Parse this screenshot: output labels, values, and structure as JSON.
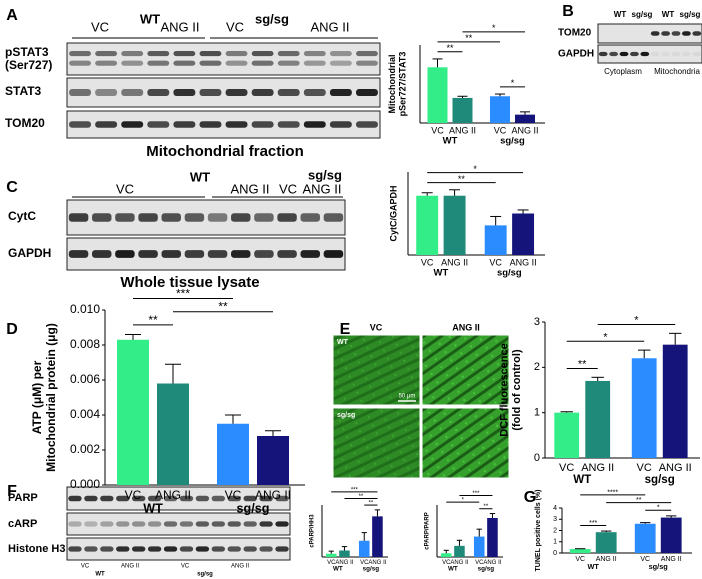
{
  "panel_letters": [
    "A",
    "B",
    "C",
    "D",
    "E",
    "F",
    "G"
  ],
  "blot_A": {
    "header": [
      "VC",
      "WT",
      "ANG II",
      "VC",
      "sg/sg",
      "ANG II"
    ],
    "rows": [
      [
        "pSTAT3",
        "(Ser727)"
      ],
      [
        "STAT3"
      ],
      [
        "TOM20"
      ]
    ],
    "caption": "Mitochondrial fraction"
  },
  "blot_B": {
    "header": [
      "WT",
      "sg/sg",
      "WT",
      "sg/sg"
    ],
    "rows": [
      "TOM20",
      "GAPDH"
    ],
    "footer": [
      "Cytoplasm",
      "Mitochondria"
    ]
  },
  "blot_C": {
    "header": [
      "VC",
      "WT",
      "ANG II",
      "VC",
      "sg/sg",
      "ANG II"
    ],
    "rows": [
      "CytC",
      "GAPDH"
    ],
    "caption": "Whole tissue lysate"
  },
  "images_E": {
    "columns": [
      "VC",
      "ANG II"
    ],
    "rows": [
      "WT",
      "sg/sg"
    ],
    "scale_bar": "50 μm"
  },
  "blot_F": {
    "rows": [
      "PARP",
      "cARP",
      "Histone H3"
    ],
    "lanes": [
      "VC",
      "ANG II",
      "VC",
      "ANG II"
    ],
    "groups": [
      "WT",
      "sg/sg"
    ]
  },
  "chart_data": [
    {
      "type": "bar",
      "ylabel": [
        "Mitochondrial",
        "pSer727/STAT3"
      ],
      "categories": [
        "VC",
        "ANG II",
        "VC",
        "ANG II"
      ],
      "groups": [
        "WT",
        "sg/sg"
      ],
      "values": [
        1.0,
        0.45,
        0.48,
        0.15
      ],
      "errors": [
        0.15,
        0.03,
        0.04,
        0.05
      ],
      "colors": [
        "#33ee88",
        "#1f8a7a",
        "#2a8cff",
        "#14147a"
      ],
      "ylim": [
        0,
        1.4
      ],
      "significance": [
        {
          "between": [
            0,
            1
          ],
          "label": "**"
        },
        {
          "between": [
            0,
            2
          ],
          "label": "**"
        },
        {
          "between": [
            2,
            3
          ],
          "label": "*"
        },
        {
          "between": [
            1,
            3
          ],
          "label": "*"
        }
      ]
    },
    {
      "type": "bar",
      "ylabel": [
        "CytC/GAPDH"
      ],
      "categories": [
        "VC",
        "ANG II",
        "VC",
        "ANG II"
      ],
      "groups": [
        "WT",
        "sg/sg"
      ],
      "values": [
        1.0,
        1.0,
        0.5,
        0.7
      ],
      "errors": [
        0.05,
        0.1,
        0.15,
        0.06
      ],
      "colors": [
        "#33ee88",
        "#1f8a7a",
        "#2a8cff",
        "#14147a"
      ],
      "ylim": [
        0,
        1.4
      ],
      "significance": [
        {
          "between": [
            0,
            2
          ],
          "label": "**"
        },
        {
          "between": [
            0,
            3
          ],
          "label": "*"
        }
      ]
    },
    {
      "type": "bar",
      "ylabel": [
        "ATP (μM) per",
        "Mitochondrial protein (μg)"
      ],
      "categories": [
        "VC",
        "ANG II",
        "VC",
        "ANG II"
      ],
      "groups": [
        "WT",
        "sg/sg"
      ],
      "values": [
        0.0083,
        0.0058,
        0.0035,
        0.0028
      ],
      "errors": [
        0.0003,
        0.0011,
        0.0005,
        0.0003
      ],
      "colors": [
        "#33ee88",
        "#1f8a7a",
        "#2a8cff",
        "#14147a"
      ],
      "ylim": [
        0,
        0.01
      ],
      "yticks": [
        {
          "value": 0,
          "label": "0.000"
        },
        {
          "value": 0.002,
          "label": "0.002"
        },
        {
          "value": 0.004,
          "label": "0.004"
        },
        {
          "value": 0.006,
          "label": "0.006"
        },
        {
          "value": 0.008,
          "label": "0.008"
        },
        {
          "value": 0.01,
          "label": "0.010"
        }
      ],
      "significance": [
        {
          "between": [
            0,
            1
          ],
          "label": "**"
        },
        {
          "between": [
            1,
            3
          ],
          "label": "**"
        },
        {
          "between": [
            0,
            2
          ],
          "label": "***"
        }
      ]
    },
    {
      "type": "bar",
      "ylabel": [
        "DCF fluorescence",
        "(fold of control)"
      ],
      "categories": [
        "VC",
        "ANG II",
        "VC",
        "ANG II"
      ],
      "groups": [
        "WT",
        "sg/sg"
      ],
      "values": [
        1.0,
        1.7,
        2.2,
        2.5
      ],
      "errors": [
        0.02,
        0.08,
        0.18,
        0.25
      ],
      "colors": [
        "#33ee88",
        "#1f8a7a",
        "#2a8cff",
        "#14147a"
      ],
      "ylim": [
        0,
        3
      ],
      "yticks": [
        0,
        1,
        2,
        3
      ],
      "significance": [
        {
          "between": [
            0,
            1
          ],
          "label": "**"
        },
        {
          "between": [
            0,
            2
          ],
          "label": "*"
        },
        {
          "between": [
            1,
            3
          ],
          "label": "*"
        }
      ]
    },
    {
      "type": "bar",
      "ylabel": [
        "cPARP/HH3"
      ],
      "categories": [
        "VC",
        "ANG II",
        "VC",
        "ANG II"
      ],
      "groups": [
        "WT",
        "sg/sg"
      ],
      "values": [
        1,
        2,
        5,
        12.5
      ],
      "errors": [
        0.8,
        1.2,
        2.5,
        2
      ],
      "colors": [
        "#33ee88",
        "#1f8a7a",
        "#2a8cff",
        "#14147a"
      ],
      "ylim": [
        0,
        16
      ],
      "significance": [
        {
          "between": [
            2,
            3
          ],
          "label": "**"
        },
        {
          "between": [
            1,
            3
          ],
          "label": "**"
        },
        {
          "between": [
            0,
            3
          ],
          "label": "***"
        }
      ]
    },
    {
      "type": "bar",
      "ylabel": [
        "cPARP/PARP"
      ],
      "categories": [
        "VC",
        "ANG II",
        "VC",
        "ANG II"
      ],
      "groups": [
        "WT",
        "sg/sg"
      ],
      "values": [
        1,
        3,
        5.5,
        10.5
      ],
      "errors": [
        0.8,
        1.5,
        2,
        1.2
      ],
      "colors": [
        "#33ee88",
        "#1f8a7a",
        "#2a8cff",
        "#14147a"
      ],
      "ylim": [
        0,
        14
      ],
      "significance": [
        {
          "between": [
            2,
            3
          ],
          "label": "**"
        },
        {
          "between": [
            0,
            2
          ],
          "label": "*"
        },
        {
          "between": [
            1,
            3
          ],
          "label": "***"
        }
      ]
    },
    {
      "type": "bar",
      "ylabel": [
        "TUNEL positive cells (%)"
      ],
      "categories": [
        "VC",
        "ANG II",
        "VC",
        "ANG II"
      ],
      "groups": [
        "WT",
        "sg/sg"
      ],
      "values": [
        0.35,
        1.85,
        2.6,
        3.15
      ],
      "errors": [
        0.03,
        0.1,
        0.1,
        0.15
      ],
      "colors": [
        "#33ee88",
        "#1f8a7a",
        "#2a8cff",
        "#14147a"
      ],
      "ylim": [
        0,
        4
      ],
      "yticks": [
        0,
        1,
        2,
        3,
        4
      ],
      "significance": [
        {
          "between": [
            0,
            1
          ],
          "label": "***"
        },
        {
          "between": [
            2,
            3
          ],
          "label": "*"
        },
        {
          "between": [
            1,
            3
          ],
          "label": "**"
        },
        {
          "between": [
            0,
            2
          ],
          "label": "****"
        }
      ]
    }
  ]
}
